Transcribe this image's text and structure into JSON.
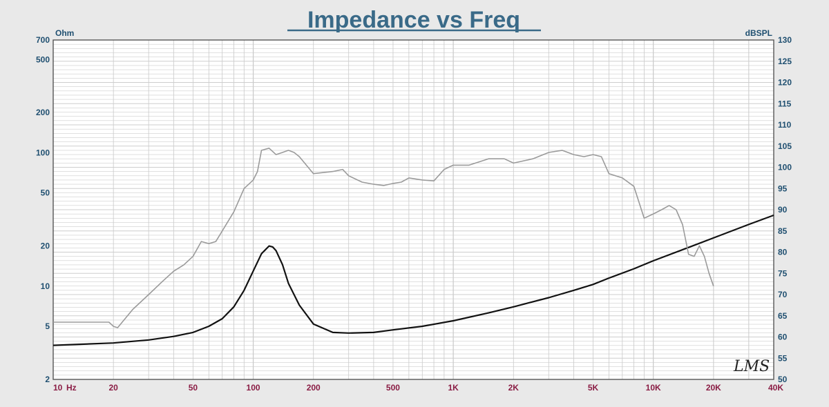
{
  "chart_data": {
    "type": "line",
    "title": "Impedance vs Freq",
    "left_axis": {
      "unit": "Ohm",
      "scale": "log",
      "range": [
        2,
        700
      ],
      "ticks": [
        {
          "value": 700,
          "label": "700"
        },
        {
          "value": 500,
          "label": "500"
        },
        {
          "value": 200,
          "label": "200"
        },
        {
          "value": 100,
          "label": "100"
        },
        {
          "value": 50,
          "label": "50"
        },
        {
          "value": 20,
          "label": "20"
        },
        {
          "value": 10,
          "label": "10"
        },
        {
          "value": 5,
          "label": "5"
        },
        {
          "value": 2,
          "label": "2"
        }
      ]
    },
    "right_axis": {
      "unit": "dBSPL",
      "scale": "linear",
      "range": [
        50,
        130
      ],
      "ticks": [
        {
          "value": 130,
          "label": "130"
        },
        {
          "value": 125,
          "label": "125"
        },
        {
          "value": 120,
          "label": "120"
        },
        {
          "value": 115,
          "label": "115"
        },
        {
          "value": 110,
          "label": "110"
        },
        {
          "value": 105,
          "label": "105"
        },
        {
          "value": 100,
          "label": "100"
        },
        {
          "value": 95,
          "label": "95"
        },
        {
          "value": 90,
          "label": "90"
        },
        {
          "value": 85,
          "label": "85"
        },
        {
          "value": 80,
          "label": "80"
        },
        {
          "value": 75,
          "label": "75"
        },
        {
          "value": 70,
          "label": "70"
        },
        {
          "value": 65,
          "label": "65"
        },
        {
          "value": 60,
          "label": "60"
        },
        {
          "value": 55,
          "label": "55"
        },
        {
          "value": 50,
          "label": "50"
        }
      ]
    },
    "x_axis": {
      "unit": "Hz",
      "scale": "log",
      "range": [
        10,
        40000
      ],
      "ticks": [
        {
          "value": 10,
          "label": "10"
        },
        {
          "value": 20,
          "label": "20"
        },
        {
          "value": 50,
          "label": "50"
        },
        {
          "value": 100,
          "label": "100"
        },
        {
          "value": 200,
          "label": "200"
        },
        {
          "value": 500,
          "label": "500"
        },
        {
          "value": 1000,
          "label": "1K"
        },
        {
          "value": 2000,
          "label": "2K"
        },
        {
          "value": 5000,
          "label": "5K"
        },
        {
          "value": 10000,
          "label": "10K"
        },
        {
          "value": 20000,
          "label": "20K"
        },
        {
          "value": 40000,
          "label": "40K"
        }
      ]
    },
    "grid": true,
    "series": [
      {
        "axis": "left",
        "color": "#111111",
        "x": [
          10,
          20,
          30,
          40,
          50,
          60,
          70,
          80,
          90,
          100,
          110,
          120,
          125,
          130,
          140,
          150,
          170,
          200,
          250,
          300,
          400,
          500,
          700,
          1000,
          1500,
          2000,
          3000,
          4000,
          5000,
          6000,
          8000,
          10000,
          15000,
          20000,
          30000,
          40000
        ],
        "values": [
          3.6,
          3.75,
          3.95,
          4.2,
          4.5,
          5.0,
          5.7,
          7.0,
          9.3,
          13.0,
          17.5,
          20.0,
          19.7,
          18.5,
          14.5,
          10.5,
          7.2,
          5.2,
          4.5,
          4.45,
          4.5,
          4.7,
          5.0,
          5.5,
          6.3,
          7.0,
          8.2,
          9.3,
          10.3,
          11.5,
          13.5,
          15.5,
          19.5,
          23.0,
          29.0,
          34.0
        ]
      },
      {
        "axis": "right",
        "color": "#9a9a9a",
        "x": [
          10,
          19,
          20,
          21,
          25,
          30,
          35,
          40,
          45,
          50,
          55,
          60,
          65,
          70,
          80,
          90,
          100,
          105,
          110,
          120,
          130,
          140,
          150,
          160,
          170,
          200,
          250,
          280,
          300,
          350,
          400,
          450,
          500,
          550,
          600,
          700,
          800,
          900,
          1000,
          1200,
          1500,
          1800,
          2000,
          2500,
          3000,
          3500,
          4000,
          4500,
          5000,
          5500,
          6000,
          7000,
          8000,
          9000,
          10000,
          11000,
          12000,
          13000,
          14000,
          15000,
          16000,
          17000,
          18000,
          19000,
          20000
        ],
        "values": [
          63.5,
          63.5,
          62.5,
          62.2,
          66.5,
          70,
          73,
          75.5,
          77,
          79,
          82.5,
          82,
          82.5,
          85,
          89.5,
          95,
          97,
          99,
          104,
          104.5,
          103,
          103.5,
          104,
          103.5,
          102.5,
          98.5,
          99,
          99.5,
          98,
          96.5,
          96,
          95.7,
          96.2,
          96.5,
          97.5,
          97,
          96.8,
          99.5,
          100.5,
          100.5,
          102,
          102,
          101,
          102,
          103.5,
          104,
          103,
          102.5,
          103,
          102.5,
          98.5,
          97.5,
          95.5,
          88,
          89,
          90,
          91,
          90,
          86.5,
          79.5,
          79,
          81.5,
          79,
          75,
          72
        ]
      }
    ],
    "logo_text": "LMS"
  }
}
